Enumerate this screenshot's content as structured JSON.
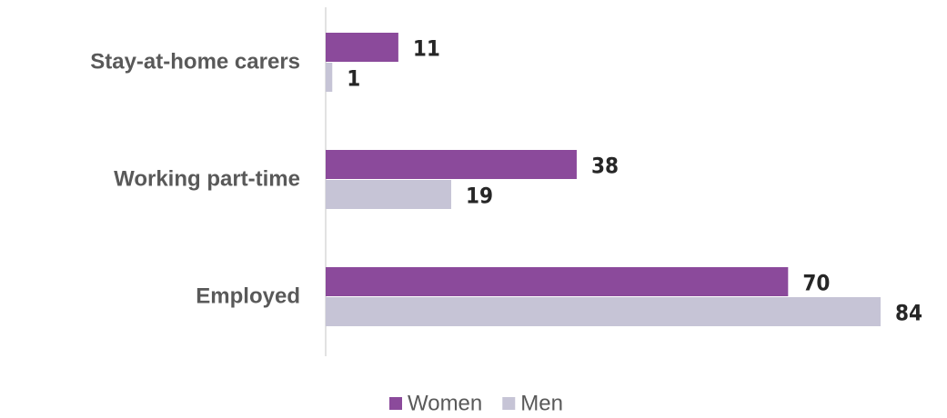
{
  "chart_data": {
    "type": "bar",
    "orientation": "horizontal",
    "categories": [
      "Stay-at-home carers",
      "Working part-time",
      "Employed"
    ],
    "series": [
      {
        "name": "Women",
        "color": "#8b4a9b",
        "values": [
          11,
          38,
          70
        ]
      },
      {
        "name": "Men",
        "color": "#c6c4d6",
        "values": [
          1,
          19,
          84
        ]
      }
    ],
    "xlim": [
      0,
      84
    ],
    "legend": "bottom"
  }
}
